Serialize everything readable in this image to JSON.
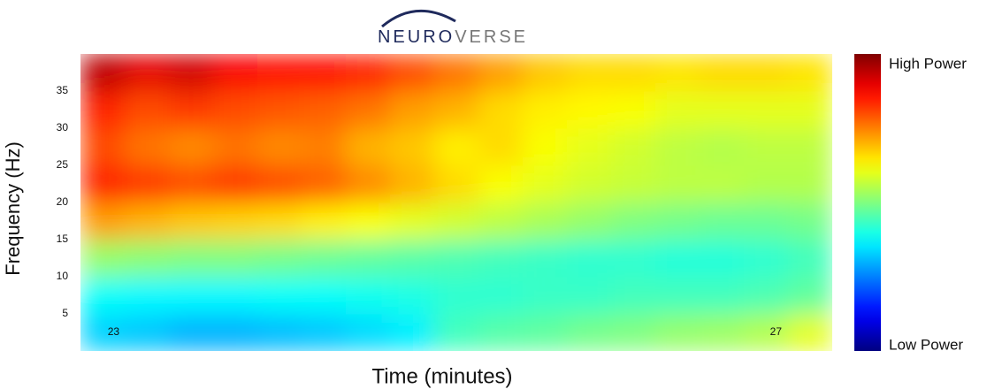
{
  "chart_data": {
    "type": "heatmap",
    "logo": [
      "NEURO",
      "VERSE"
    ],
    "x_label": "Time (minutes)",
    "y_label": "Frequency (Hz)",
    "xlim": [
      22.8,
      27.34
    ],
    "xticks": [
      23,
      27
    ],
    "ylim": [
      0,
      40
    ],
    "yticks": [
      5,
      10,
      15,
      20,
      25,
      30,
      35
    ],
    "colormap": "jet",
    "clim": [
      0,
      100
    ],
    "cticks": [
      {
        "value": 100,
        "label": "High Power"
      },
      {
        "value": 0,
        "label": "Low Power"
      }
    ],
    "z": [
      [
        33,
        32,
        30,
        30,
        31,
        32,
        34,
        36,
        44,
        46,
        47,
        49,
        50,
        52,
        53,
        55,
        60
      ],
      [
        38,
        37,
        37,
        37,
        38,
        38,
        39,
        40,
        42,
        42,
        43,
        43,
        44,
        44,
        44,
        45,
        47
      ],
      [
        52,
        51,
        50,
        50,
        49,
        48,
        47,
        46,
        45,
        44,
        43,
        42,
        42,
        41,
        41,
        42,
        44
      ],
      [
        72,
        70,
        68,
        67,
        66,
        64,
        62,
        60,
        58,
        56,
        54,
        52,
        50,
        49,
        48,
        48,
        49
      ],
      [
        84,
        82,
        80,
        82,
        80,
        78,
        74,
        70,
        66,
        62,
        60,
        58,
        57,
        56,
        56,
        55,
        55
      ],
      [
        80,
        76,
        74,
        76,
        74,
        75,
        70,
        68,
        64,
        66,
        62,
        60,
        58,
        56,
        55,
        56,
        56
      ],
      [
        84,
        80,
        82,
        80,
        79,
        78,
        76,
        72,
        70,
        66,
        64,
        63,
        62,
        60,
        60,
        60,
        60
      ],
      [
        94,
        90,
        92,
        88,
        86,
        86,
        84,
        80,
        76,
        72,
        68,
        66,
        66,
        65,
        66,
        66,
        65
      ]
    ]
  }
}
